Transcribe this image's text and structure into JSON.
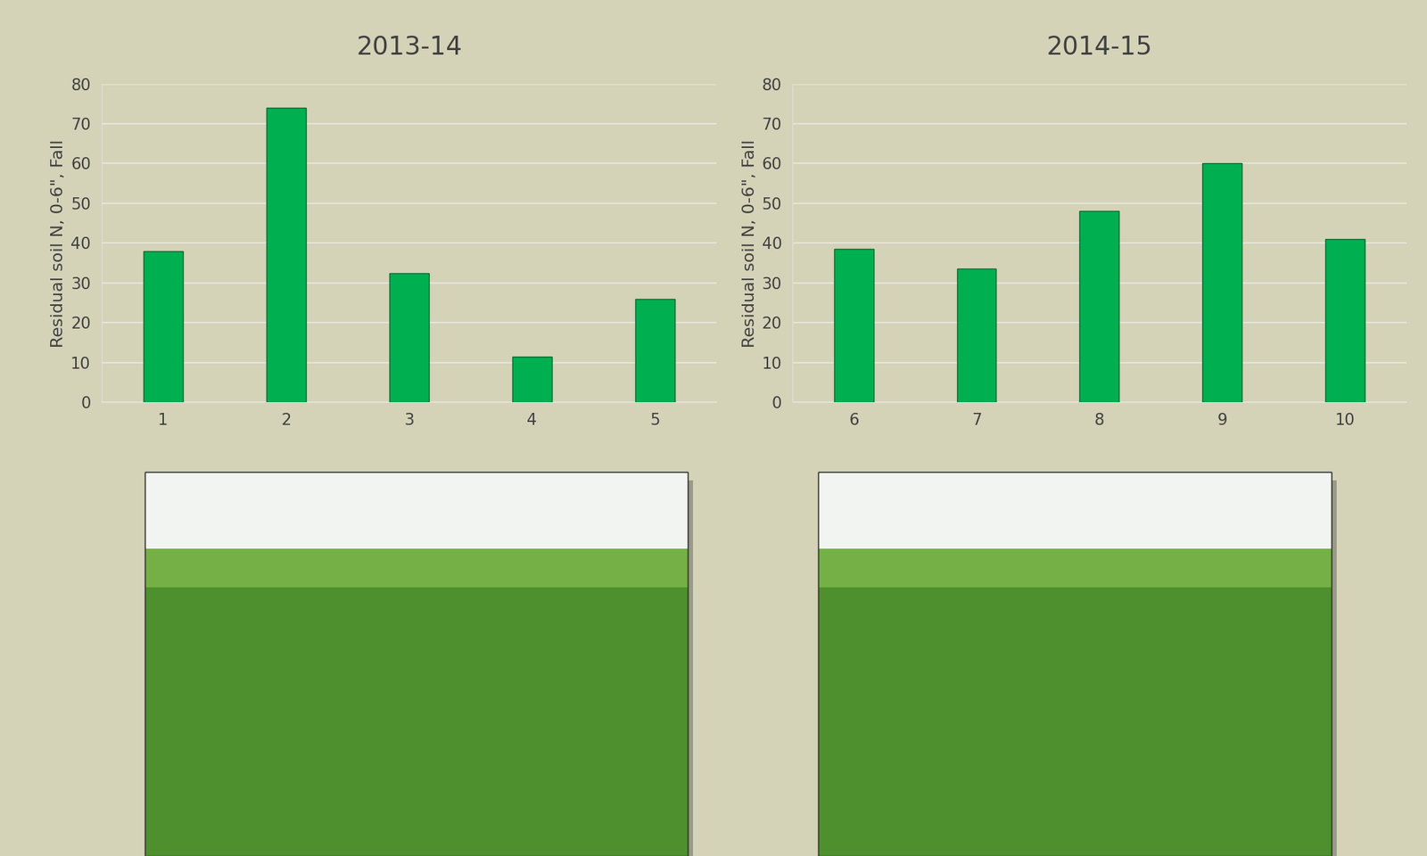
{
  "chart_data": [
    {
      "type": "bar",
      "title": "2013-14",
      "y_label": "Residual soil N, 0-6\", Fall",
      "categories": [
        "1",
        "2",
        "3",
        "4",
        "5"
      ],
      "values": [
        38,
        74,
        32.5,
        11.5,
        26
      ],
      "color": "#00b050",
      "ylim": [
        0,
        80
      ],
      "yticks": [
        0,
        10,
        20,
        30,
        40,
        50,
        60,
        70,
        80
      ],
      "grid": true
    },
    {
      "type": "bar",
      "title": "2014-15",
      "y_label": "Residual soil N, 0-6\", Fall",
      "categories": [
        "6",
        "7",
        "8",
        "9",
        "10"
      ],
      "values": [
        38.5,
        33.5,
        48,
        60,
        41
      ],
      "color": "#00b050",
      "ylim": [
        0,
        80
      ],
      "yticks": [
        0,
        10,
        20,
        30,
        40,
        50,
        60,
        70,
        80
      ],
      "grid": true
    }
  ]
}
